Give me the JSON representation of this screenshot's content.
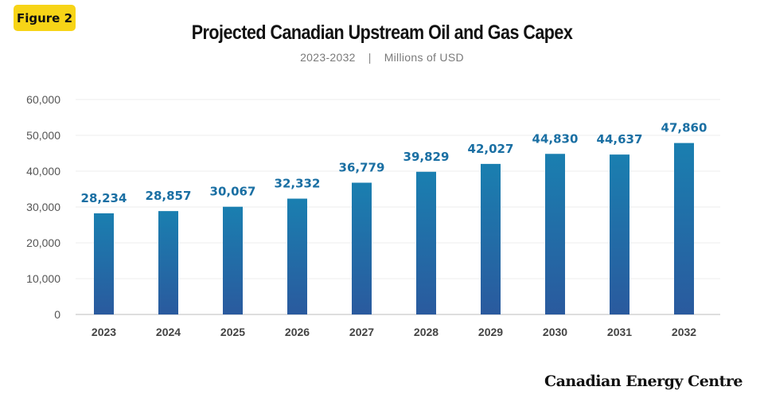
{
  "figure_label": "Figure 2",
  "brand": "Canadian Energy Centre",
  "colors": {
    "bar_top": "#1a7fb0",
    "bar_bottom": "#2a5a9e",
    "label": "#1a6fa3",
    "badge": "#f7d417"
  },
  "chart_data": {
    "type": "bar",
    "title": "Projected Canadian Upstream  Oil and Gas Capex",
    "subtitle_left": "2023-2032",
    "subtitle_right": "Millions of USD",
    "categories": [
      "2023",
      "2024",
      "2025",
      "2026",
      "2027",
      "2028",
      "2029",
      "2030",
      "2031",
      "2032"
    ],
    "values": [
      28234,
      28857,
      30067,
      32332,
      36779,
      39829,
      42027,
      44830,
      44637,
      47860
    ],
    "value_labels": [
      "28,234",
      "28,857",
      "30,067",
      "32,332",
      "36,779",
      "39,829",
      "42,027",
      "44,830",
      "44,637",
      "47,860"
    ],
    "yticks": [
      0,
      10000,
      20000,
      30000,
      40000,
      50000,
      60000
    ],
    "ytick_labels": [
      "0",
      "10,000",
      "20,000",
      "30,000",
      "40,000",
      "50,000",
      "60,000"
    ],
    "ylim": [
      0,
      60000
    ],
    "grid": true,
    "xlabel": "",
    "ylabel": ""
  }
}
